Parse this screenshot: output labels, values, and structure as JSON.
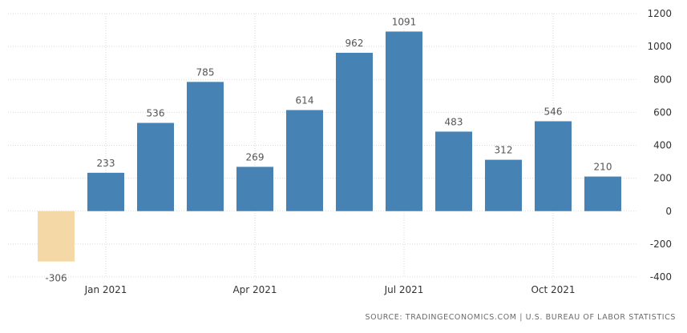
{
  "chart_data": {
    "type": "bar",
    "categories": [
      "Dec 2020",
      "Jan 2021",
      "Feb 2021",
      "Mar 2021",
      "Apr 2021",
      "May 2021",
      "Jun 2021",
      "Jul 2021",
      "Aug 2021",
      "Sep 2021",
      "Oct 2021",
      "Nov 2021"
    ],
    "values": [
      -306,
      233,
      536,
      785,
      269,
      614,
      962,
      1091,
      483,
      312,
      546,
      210
    ],
    "data_labels": [
      "-306",
      "233",
      "536",
      "785",
      "269",
      "614",
      "962",
      "1091",
      "483",
      "312",
      "546",
      "210"
    ],
    "x_tick_labels": [
      "Jan 2021",
      "Apr 2021",
      "Jul 2021",
      "Oct 2021"
    ],
    "y_ticks": [
      1200,
      1000,
      800,
      600,
      400,
      200,
      0,
      -200,
      -400
    ],
    "ylim": [
      -400,
      1200
    ],
    "grid": true,
    "y_axis_side": "right",
    "colors": {
      "positive": "#4682b4",
      "negative": "#f4d9a6",
      "grid": "#d9d9d9",
      "text": "#555555"
    },
    "title": "",
    "xlabel": "",
    "ylabel": ""
  },
  "source_text": "SOURCE: TRADINGECONOMICS.COM | U.S. BUREAU OF LABOR STATISTICS"
}
